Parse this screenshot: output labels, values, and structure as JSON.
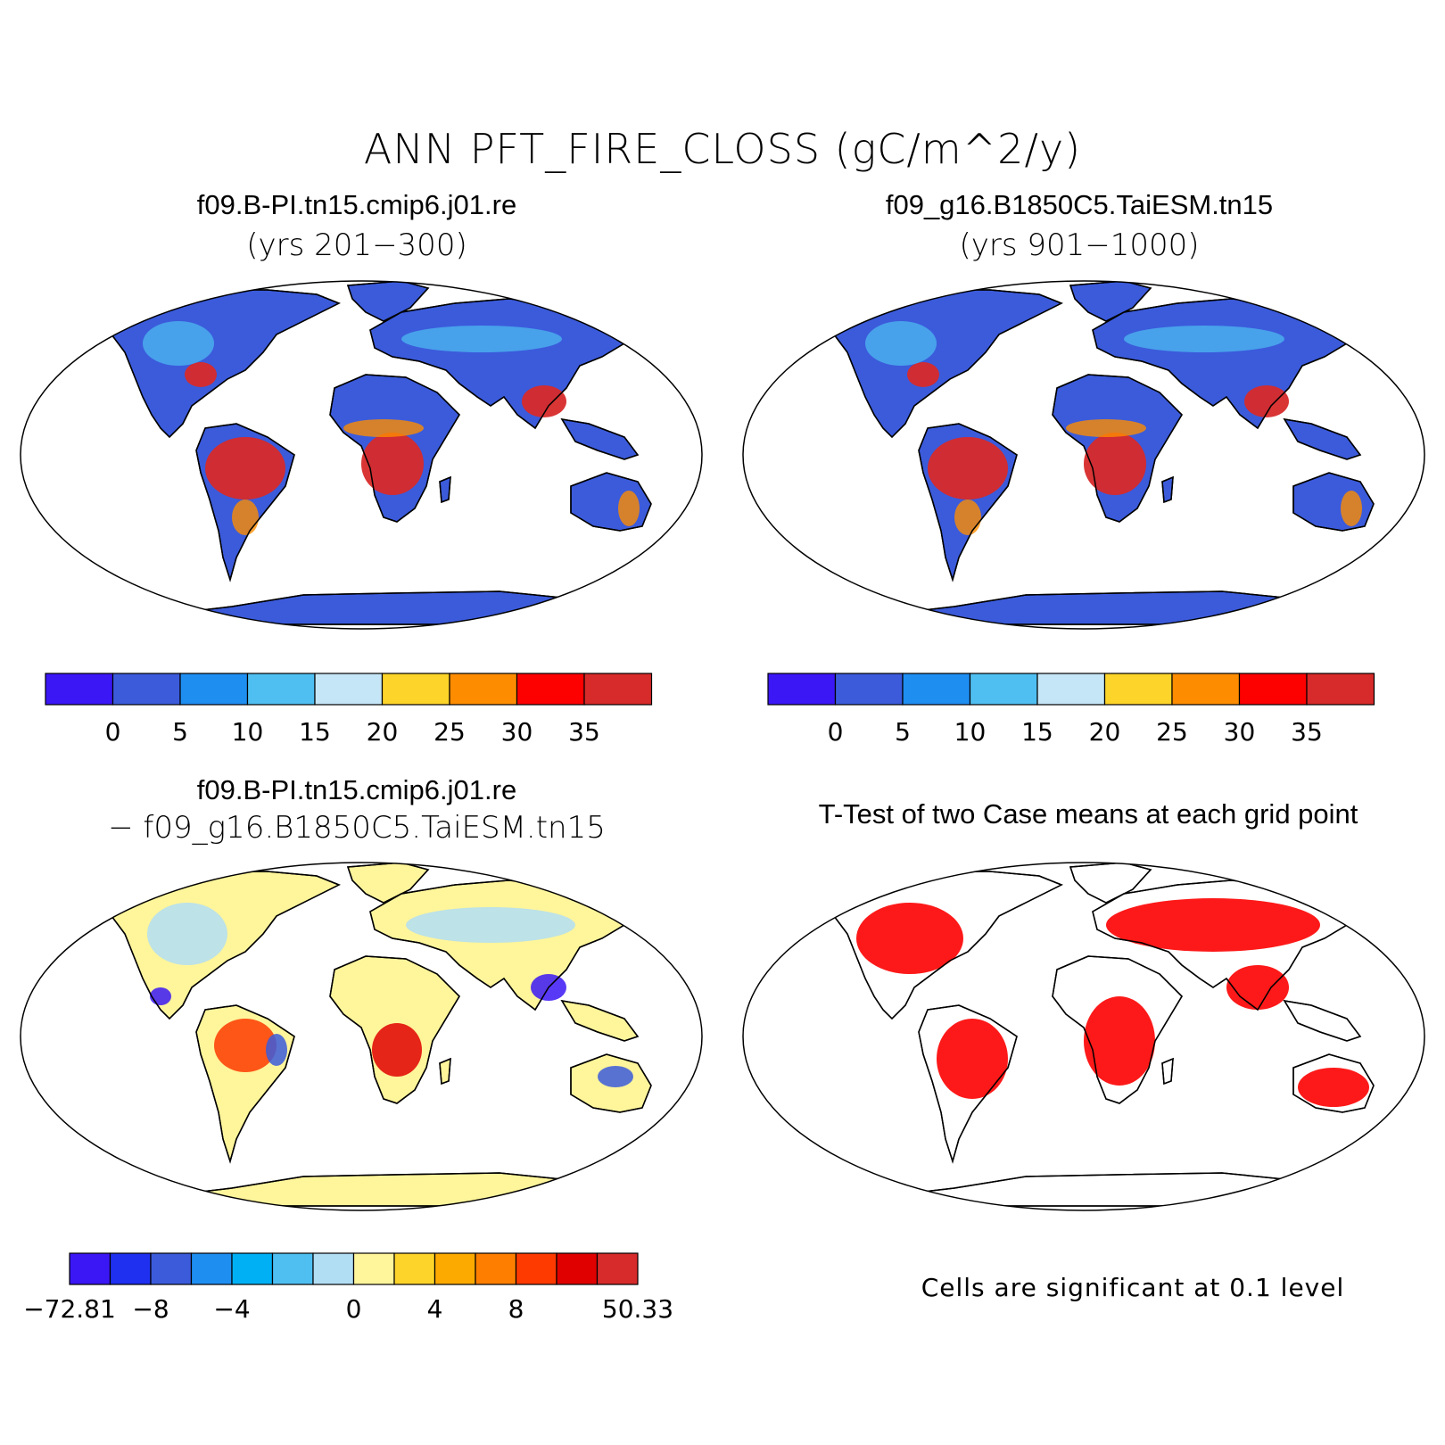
{
  "title": "ANN PFT_FIRE_CLOSS (gC/m^2/y)",
  "panels": [
    {
      "name": "case1",
      "title": "f09.B-PI.tn15.cmip6.j01.re",
      "subtitle": "(yrs 201−300)"
    },
    {
      "name": "case2",
      "title": "f09_g16.B1850C5.TaiESM.tn15",
      "subtitle": "(yrs 901−1000)"
    },
    {
      "name": "diff",
      "title": "f09.B-PI.tn15.cmip6.j01.re",
      "subtitle": "− f09_g16.B1850C5.TaiESM.tn15"
    },
    {
      "name": "ttest",
      "title": "T-Test of two Case means at each grid point",
      "subtitle": ""
    }
  ],
  "colorbar_main": {
    "colors": [
      "#3b17f5",
      "#3b5bdb",
      "#1f8ef1",
      "#4fbff2",
      "#c5e6f6",
      "#fdd42a",
      "#fe8c00",
      "#fd0000",
      "#d72a2a"
    ],
    "labels": [
      "0",
      "5",
      "10",
      "15",
      "20",
      "25",
      "30",
      "35"
    ]
  },
  "colorbar_diff": {
    "colors": [
      "#3b17f5",
      "#1f30f0",
      "#3b5bdb",
      "#1f8ef1",
      "#00b0f5",
      "#4fbff2",
      "#b2def4",
      "#fff59b",
      "#fdd42a",
      "#fdaa00",
      "#fe7f00",
      "#fe3a00",
      "#e00000",
      "#d72a2a"
    ],
    "labels": [
      "−72.81",
      "−8",
      "−4",
      "0",
      "4",
      "8",
      "50.33"
    ]
  },
  "significance_note": "Cells are significant at 0.1 level",
  "map_colors": {
    "ocean": "#ffffff",
    "coast": "#000000",
    "low": "#3b5bdb",
    "mid": "#4fbff2",
    "high": "#d72a2a",
    "diff_base": "#fff59b",
    "sig": "#fd0000"
  }
}
